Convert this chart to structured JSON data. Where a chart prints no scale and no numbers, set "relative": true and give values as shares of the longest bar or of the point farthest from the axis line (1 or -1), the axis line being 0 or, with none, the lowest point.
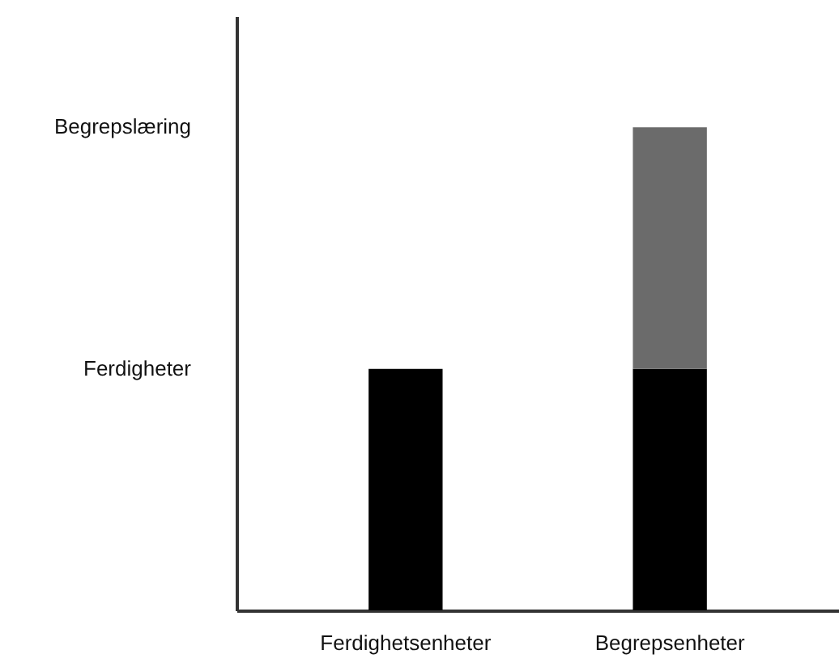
{
  "chart_data": {
    "type": "bar",
    "relative": true,
    "stacked": true,
    "categories": [
      "Ferdighetsenheter",
      "Begrepsenheter"
    ],
    "series": [
      {
        "color": "#000000",
        "values": [
          0.5,
          0.5
        ]
      },
      {
        "color": "#6b6b6b",
        "values": [
          null,
          0.5
        ]
      }
    ],
    "annotations": [
      "Ferdigheter",
      "Begrepslæring"
    ],
    "grid": false
  }
}
